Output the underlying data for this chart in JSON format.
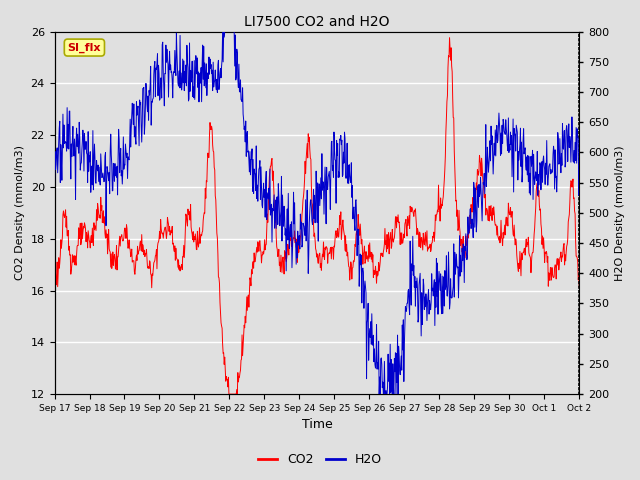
{
  "title": "LI7500 CO2 and H2O",
  "xlabel": "Time",
  "ylabel_left": "CO2 Density (mmol/m3)",
  "ylabel_right": "H2O Density (mmol/m3)",
  "ylim_left": [
    12,
    26
  ],
  "ylim_right": [
    200,
    800
  ],
  "yticks_left": [
    12,
    14,
    16,
    18,
    20,
    22,
    24,
    26
  ],
  "yticks_right": [
    200,
    250,
    300,
    350,
    400,
    450,
    500,
    550,
    600,
    650,
    700,
    750,
    800
  ],
  "co2_color": "#FF0000",
  "h2o_color": "#0000CC",
  "background_color": "#E0E0E0",
  "grid_color": "#FFFFFF",
  "annotation_text": "SI_flx",
  "annotation_bg": "#FFFF99",
  "annotation_border": "#AAAA00",
  "legend_co2": "CO2",
  "legend_h2o": "H2O",
  "x_tick_labels": [
    "Sep 17",
    "Sep 18",
    "Sep 19",
    "Sep 20",
    "Sep 21",
    "Sep 22",
    "Sep 23",
    "Sep 24",
    "Sep 25",
    "Sep 26",
    "Sep 27",
    "Sep 28",
    "Sep 29",
    "Sep 30",
    "Oct 1",
    "Oct 2"
  ],
  "num_points": 1000
}
